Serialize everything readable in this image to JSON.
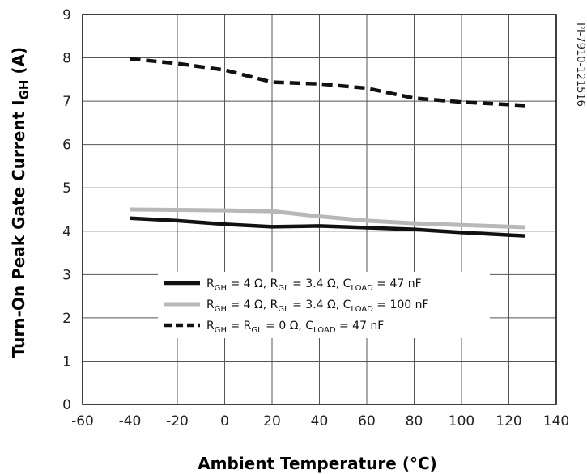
{
  "chart_data": {
    "type": "line",
    "xlabel": "Ambient Temperature (°C)",
    "ylabel": {
      "main": "Turn-On Peak Gate Current I",
      "sub": "GH",
      "unit": " (A)"
    },
    "figure_id": "PI-7910-121516",
    "xlim": [
      -60,
      140
    ],
    "ylim": [
      0,
      9
    ],
    "x_ticks": [
      -60,
      -40,
      -20,
      0,
      20,
      40,
      60,
      80,
      100,
      120,
      140
    ],
    "y_ticks": [
      0,
      1,
      2,
      3,
      4,
      5,
      6,
      7,
      8,
      9
    ],
    "grid": true,
    "legend_position": "lower-center",
    "series": [
      {
        "legend": [
          {
            "t": "R"
          },
          {
            "t": "GH",
            "sub": true
          },
          {
            "t": " = 4 Ω, R"
          },
          {
            "t": "GL",
            "sub": true
          },
          {
            "t": " = 3.4 Ω, C"
          },
          {
            "t": "LOAD",
            "sub": true
          },
          {
            "t": " = 47 nF"
          }
        ],
        "color": "#111111",
        "style": "solid",
        "x": [
          -40,
          -20,
          0,
          20,
          40,
          60,
          80,
          100,
          127
        ],
        "y": [
          4.3,
          4.24,
          4.16,
          4.1,
          4.12,
          4.08,
          4.04,
          3.97,
          3.89
        ]
      },
      {
        "legend": [
          {
            "t": "R"
          },
          {
            "t": "GH",
            "sub": true
          },
          {
            "t": " = 4 Ω, R"
          },
          {
            "t": "GL",
            "sub": true
          },
          {
            "t": " = 3.4 Ω, C"
          },
          {
            "t": "LOAD",
            "sub": true
          },
          {
            "t": " = 100 nF"
          }
        ],
        "color": "#b8b8b8",
        "style": "solid",
        "x": [
          -40,
          -20,
          0,
          20,
          40,
          60,
          80,
          100,
          127
        ],
        "y": [
          4.5,
          4.49,
          4.48,
          4.46,
          4.34,
          4.24,
          4.18,
          4.14,
          4.09
        ]
      },
      {
        "legend": [
          {
            "t": "R"
          },
          {
            "t": "GH",
            "sub": true
          },
          {
            "t": " = R"
          },
          {
            "t": "GL",
            "sub": true
          },
          {
            "t": " = 0 Ω, C"
          },
          {
            "t": "LOAD",
            "sub": true
          },
          {
            "t": " = 47 nF"
          }
        ],
        "color": "#111111",
        "style": "dashed",
        "x": [
          -40,
          -20,
          0,
          20,
          40,
          60,
          80,
          100,
          127
        ],
        "y": [
          7.98,
          7.87,
          7.72,
          7.44,
          7.4,
          7.3,
          7.07,
          6.98,
          6.9
        ]
      }
    ]
  }
}
